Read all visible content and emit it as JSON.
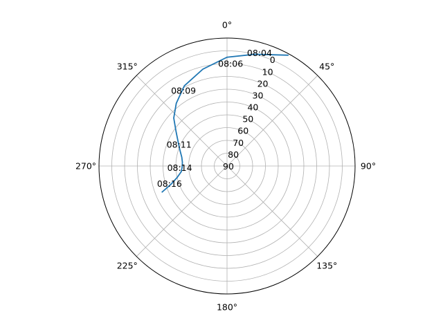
{
  "chart_data": {
    "type": "line",
    "projection": "polar",
    "theta_zero_location": "N",
    "theta_direction": "clockwise",
    "theta_ticks": [
      {
        "deg": 0,
        "label": "0°"
      },
      {
        "deg": 45,
        "label": "45°"
      },
      {
        "deg": 90,
        "label": "90°"
      },
      {
        "deg": 135,
        "label": "135°"
      },
      {
        "deg": 180,
        "label": "180°"
      },
      {
        "deg": 225,
        "label": "225°"
      },
      {
        "deg": 270,
        "label": "270°"
      },
      {
        "deg": 315,
        "label": "315°"
      }
    ],
    "r_axis": {
      "inverted": true,
      "range": [
        90,
        0
      ],
      "outer_edge_value": -10
    },
    "r_ticks": [
      0,
      10,
      20,
      30,
      40,
      50,
      60,
      70,
      80,
      90
    ],
    "series": [
      {
        "color": "#1f77b4",
        "points": [
          {
            "azimuth": 29,
            "altitude": -9
          },
          {
            "azimuth": 14,
            "altitude": 0
          },
          {
            "azimuth": 0,
            "altitude": 5
          },
          {
            "azimuth": -14,
            "altitude": 12
          },
          {
            "azimuth": -28,
            "altitude": 19
          },
          {
            "azimuth": -39,
            "altitude": 27
          },
          {
            "azimuth": -48,
            "altitude": 34
          },
          {
            "azimuth": -56,
            "altitude": 42
          },
          {
            "azimuth": -63,
            "altitude": 47
          },
          {
            "azimuth": -71,
            "altitude": 51
          },
          {
            "azimuth": -79,
            "altitude": 54
          },
          {
            "azimuth": -85,
            "altitude": 55
          },
          {
            "azimuth": -91,
            "altitude": 55
          },
          {
            "azimuth": -97,
            "altitude": 54
          },
          {
            "azimuth": -103,
            "altitude": 50
          },
          {
            "azimuth": -108,
            "altitude": 44
          },
          {
            "azimuth": -112,
            "altitude": 35
          }
        ]
      }
    ],
    "annotations": [
      {
        "label": "08:04",
        "azimuth": 16,
        "altitude": -2
      },
      {
        "label": "08:06",
        "azimuth": 2,
        "altitude": 10
      },
      {
        "label": "08:09",
        "azimuth": -30,
        "altitude": 22
      },
      {
        "label": "08:11",
        "azimuth": -66,
        "altitude": 49
      },
      {
        "label": "08:14",
        "azimuth": -92,
        "altitude": 53
      },
      {
        "label": "08:16",
        "azimuth": -107,
        "altitude": 43
      }
    ]
  }
}
